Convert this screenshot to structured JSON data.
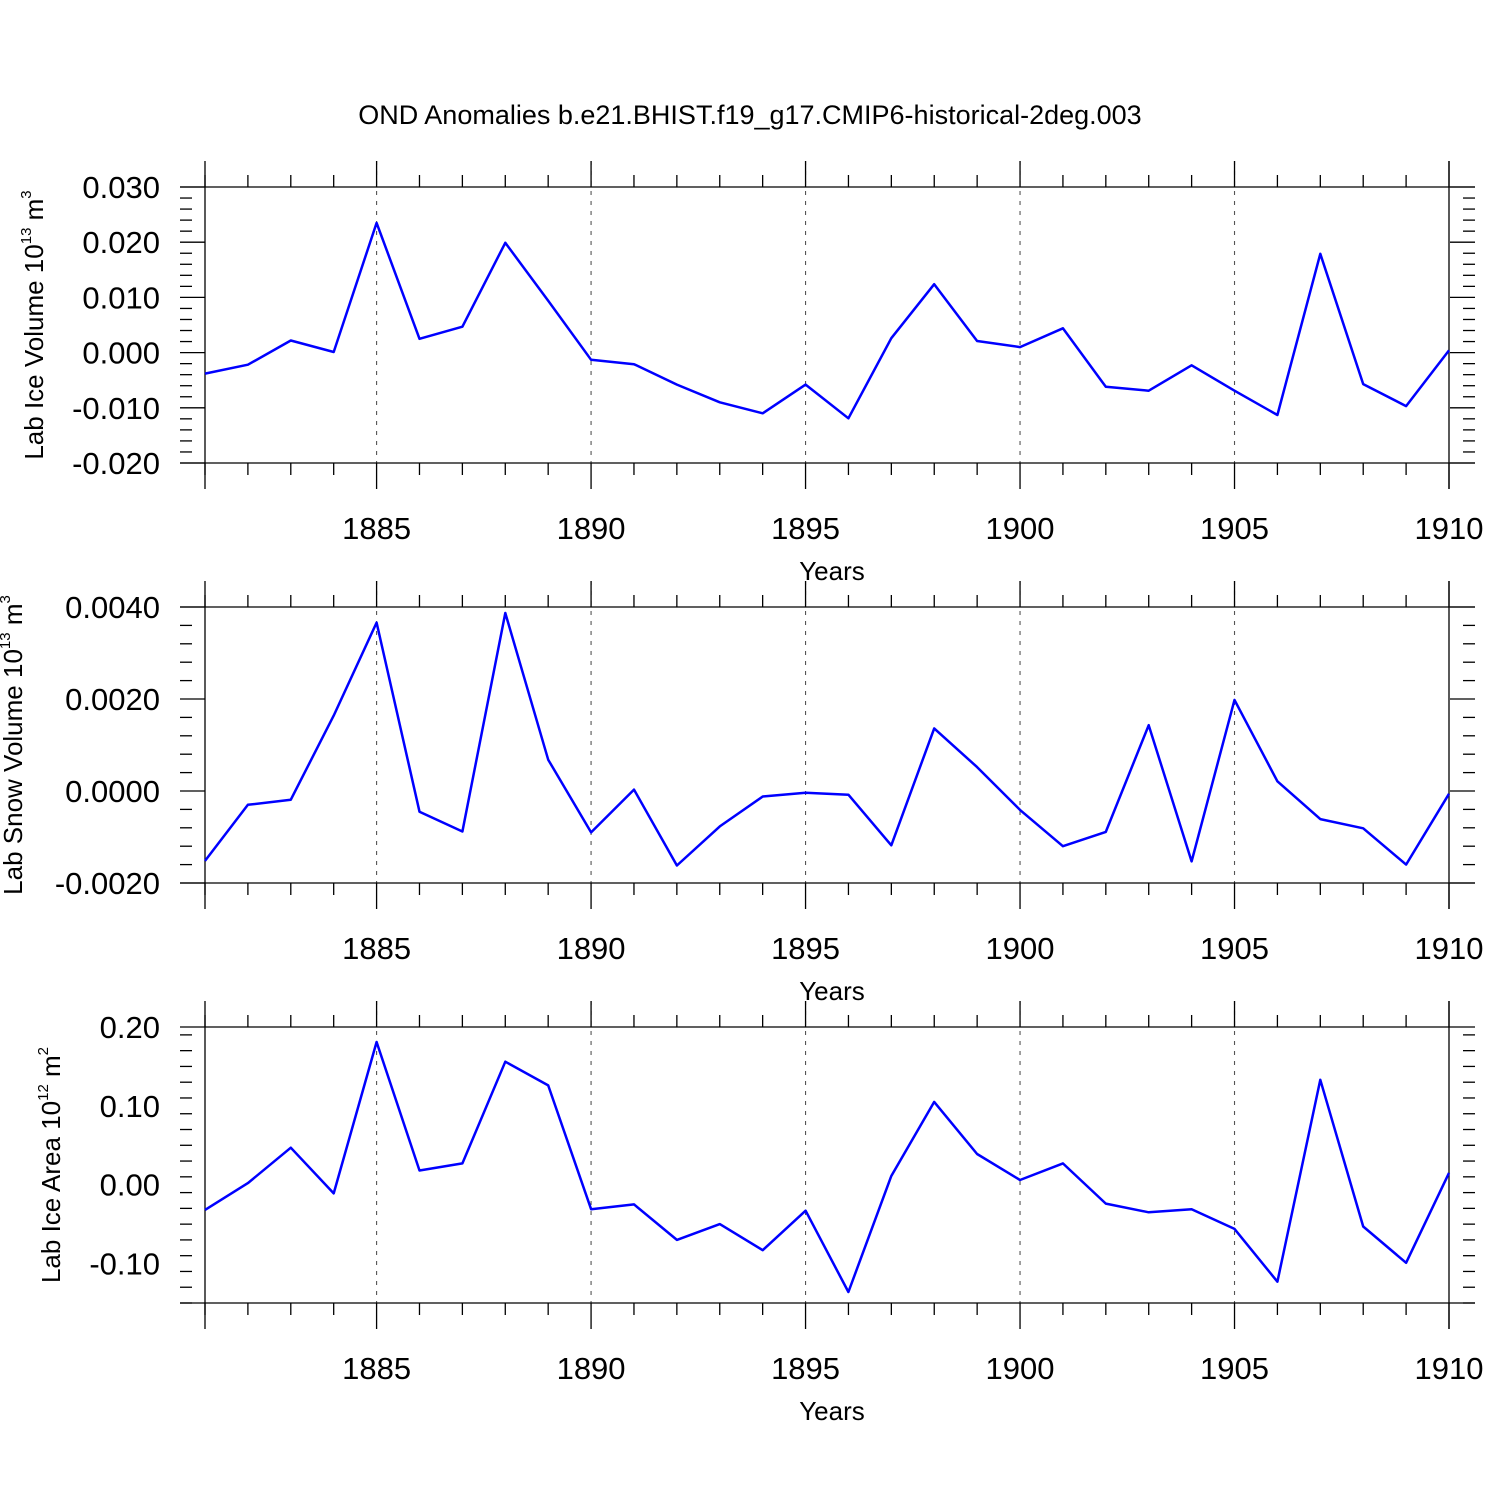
{
  "title": "OND Anomalies b.e21.BHIST.f19_g17.CMIP6-historical-2deg.003",
  "colors": {
    "series": "#0000ff",
    "axis": "#000000",
    "grid": "#555555"
  },
  "chart_data": [
    {
      "type": "line",
      "xlabel": "Years",
      "ylabel": {
        "text": "Lab Ice Volume 10",
        "sup": "13",
        "unit": " m",
        "unit_sup": "3"
      },
      "xlim": [
        1881,
        1910
      ],
      "ylim": [
        -0.02,
        0.03
      ],
      "xticks": [
        1885,
        1890,
        1895,
        1900,
        1905,
        1910
      ],
      "xtick_labels": [
        "1885",
        "1890",
        "1895",
        "1900",
        "1905",
        "1910"
      ],
      "yticks": [
        0.03,
        0.02,
        0.01,
        0.0,
        -0.01,
        -0.02
      ],
      "ytick_labels": [
        "0.030",
        "0.020",
        "0.010",
        "0.000",
        "-0.010",
        "-0.020"
      ],
      "grid": "vertical dashed at major x ticks",
      "x": [
        1881,
        1882,
        1883,
        1884,
        1885,
        1886,
        1887,
        1888,
        1889,
        1890,
        1891,
        1892,
        1893,
        1894,
        1895,
        1896,
        1897,
        1898,
        1899,
        1900,
        1901,
        1902,
        1903,
        1904,
        1905,
        1906,
        1907,
        1908,
        1909,
        1910
      ],
      "series": [
        {
          "values": [
            -0.0038,
            -0.0022,
            0.0022,
            0.0001,
            0.0235,
            0.0025,
            0.0047,
            0.0199,
            0.0094,
            -0.0013,
            -0.0021,
            -0.0058,
            -0.009,
            -0.011,
            -0.0058,
            -0.0119,
            0.0026,
            0.0124,
            0.0021,
            0.001,
            0.0044,
            -0.0062,
            -0.0069,
            -0.0023,
            -0.0069,
            -0.0113,
            0.0179,
            -0.0057,
            -0.0097,
            0.0004
          ]
        }
      ]
    },
    {
      "type": "line",
      "xlabel": "Years",
      "ylabel": {
        "text": "Lab Snow Volume 10",
        "sup": "13",
        "unit": " m",
        "unit_sup": "3"
      },
      "xlim": [
        1881,
        1910
      ],
      "ylim": [
        -0.002,
        0.004
      ],
      "xticks": [
        1885,
        1890,
        1895,
        1900,
        1905,
        1910
      ],
      "xtick_labels": [
        "1885",
        "1890",
        "1895",
        "1900",
        "1905",
        "1910"
      ],
      "yticks": [
        0.004,
        0.002,
        0.0,
        -0.002
      ],
      "ytick_labels": [
        "0.0040",
        "0.0020",
        "0.0000",
        "-0.0020"
      ],
      "grid": "vertical dashed at major x ticks",
      "x": [
        1881,
        1882,
        1883,
        1884,
        1885,
        1886,
        1887,
        1888,
        1889,
        1890,
        1891,
        1892,
        1893,
        1894,
        1895,
        1896,
        1897,
        1898,
        1899,
        1900,
        1901,
        1902,
        1903,
        1904,
        1905,
        1906,
        1907,
        1908,
        1909,
        1910
      ],
      "series": [
        {
          "values": [
            -0.00152,
            -0.0003,
            -0.00019,
            0.00164,
            0.00366,
            -0.00045,
            -0.00088,
            0.00387,
            0.00068,
            -0.0009,
            3e-05,
            -0.00162,
            -0.00077,
            -0.00012,
            -4e-05,
            -8e-05,
            -0.00118,
            0.00136,
            0.00052,
            -0.00041,
            -0.0012,
            -0.00089,
            0.00143,
            -0.00153,
            0.00198,
            0.00021,
            -0.00061,
            -0.00081,
            -0.0016,
            -6e-05
          ]
        }
      ]
    },
    {
      "type": "line",
      "xlabel": "Years",
      "ylabel": {
        "text": "Lab Ice Area 10",
        "sup": "12",
        "unit": " m",
        "unit_sup": "2"
      },
      "xlim": [
        1881,
        1910
      ],
      "ylim": [
        -0.15,
        0.2
      ],
      "xticks": [
        1885,
        1890,
        1895,
        1900,
        1905,
        1910
      ],
      "xtick_labels": [
        "1885",
        "1890",
        "1895",
        "1900",
        "1905",
        "1910"
      ],
      "yticks": [
        0.2,
        0.1,
        0.0,
        -0.1
      ],
      "ytick_labels": [
        "0.20",
        "0.10",
        "0.00",
        "-0.10"
      ],
      "grid": "vertical dashed at major x ticks",
      "x": [
        1881,
        1882,
        1883,
        1884,
        1885,
        1886,
        1887,
        1888,
        1889,
        1890,
        1891,
        1892,
        1893,
        1894,
        1895,
        1896,
        1897,
        1898,
        1899,
        1900,
        1901,
        1902,
        1903,
        1904,
        1905,
        1906,
        1907,
        1908,
        1909,
        1910
      ],
      "series": [
        {
          "values": [
            -0.032,
            0.002,
            0.047,
            -0.011,
            0.181,
            0.018,
            0.027,
            0.156,
            0.126,
            -0.031,
            -0.025,
            -0.07,
            -0.05,
            -0.083,
            -0.033,
            -0.136,
            0.011,
            0.105,
            0.039,
            0.006,
            0.027,
            -0.024,
            -0.035,
            -0.031,
            -0.056,
            -0.123,
            0.133,
            -0.053,
            -0.099,
            0.015
          ]
        }
      ]
    }
  ]
}
